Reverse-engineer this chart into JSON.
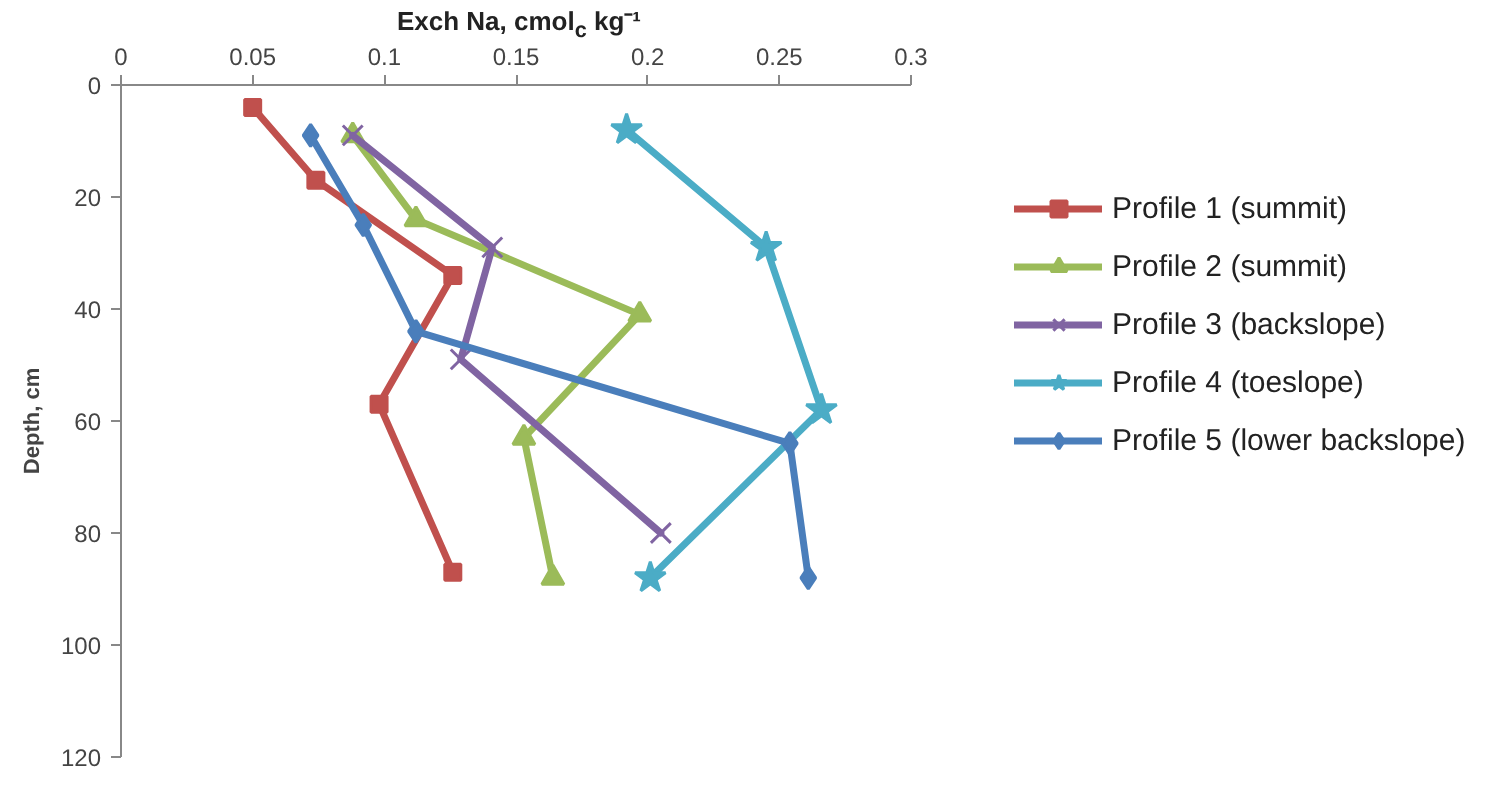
{
  "chart_data": {
    "type": "line",
    "xlabel": "Exch Na, cmol$_{c}$ kg⁻¹",
    "ylabel": "Depth, cm",
    "xlim": [
      0,
      0.3
    ],
    "xticks": [
      0,
      0.05,
      0.1,
      0.15,
      0.2,
      0.25,
      0.3
    ],
    "ylim": [
      120,
      0
    ],
    "yticks": [
      0,
      20,
      40,
      60,
      80,
      100,
      120
    ],
    "grid": false,
    "legend": "right",
    "series": [
      {
        "name": "Profile 1 (summit)",
        "color": "#c0504d",
        "marker": "square",
        "x": [
          0.05,
          0.074,
          0.126,
          0.098,
          0.126
        ],
        "values": [
          4,
          17,
          34,
          57,
          87
        ]
      },
      {
        "name": "Profile 2 (summit)",
        "color": "#9bbb59",
        "marker": "triangle",
        "x": [
          0.088,
          0.112,
          0.197,
          0.153,
          0.164
        ],
        "values": [
          9,
          24,
          41,
          63,
          88
        ]
      },
      {
        "name": "Profile 3 (backslope)",
        "color": "#8064a2",
        "marker": "cross",
        "x": [
          0.088,
          0.141,
          0.129,
          0.205
        ],
        "values": [
          9,
          29,
          49,
          80
        ]
      },
      {
        "name": "Profile 4 (toeslope)",
        "color": "#4bacc6",
        "marker": "star",
        "x": [
          0.192,
          0.245,
          0.266,
          0.201
        ],
        "values": [
          8,
          29,
          58,
          88
        ]
      },
      {
        "name": "Profile 5 (lower backslope)",
        "color": "#4a7ebb",
        "marker": "diamond",
        "x": [
          0.072,
          0.092,
          0.112,
          0.254,
          0.261
        ],
        "values": [
          9,
          25,
          44,
          64,
          88
        ]
      }
    ]
  }
}
